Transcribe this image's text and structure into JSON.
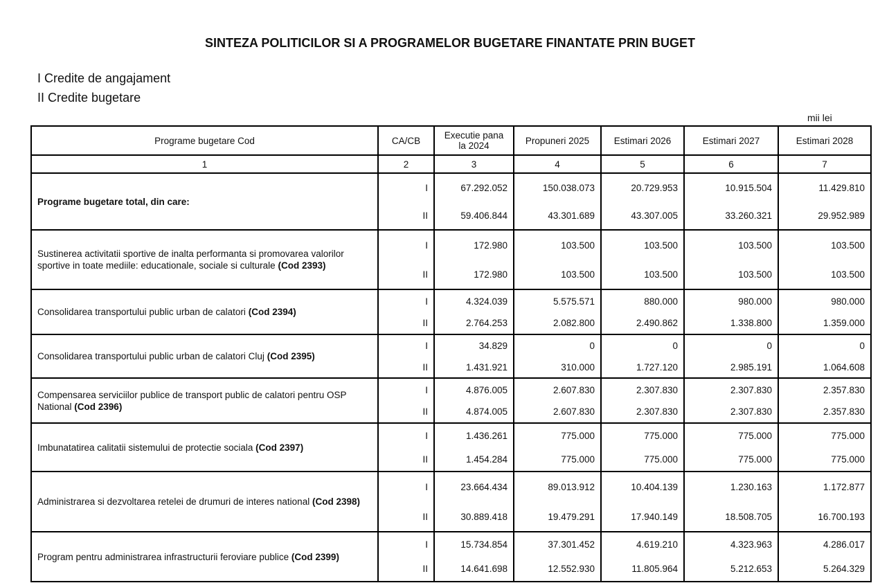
{
  "title": "SINTEZA POLITICILOR SI A PROGRAMELOR BUGETARE FINANTATE PRIN BUGET",
  "legend": [
    "I Credite de angajament",
    "II Credite bugetare"
  ],
  "unit": "mii lei",
  "headers": [
    "Programe bugetare  Cod",
    "CA/CB",
    "Executie pana la  2024",
    "Propuneri 2025",
    "Estimari 2026",
    "Estimari 2027",
    "Estimari 2028"
  ],
  "column_numbers": [
    "1",
    "2",
    "3",
    "4",
    "5",
    "6",
    "7"
  ],
  "rows": [
    {
      "name": "Programe bugetare total, din care:",
      "code": "",
      "bold": true,
      "I": {
        "type": "I",
        "values": [
          "67.292.052",
          "150.038.073",
          "20.729.953",
          "10.915.504",
          "11.429.810"
        ]
      },
      "II": {
        "type": "II",
        "values": [
          "59.406.844",
          "43.301.689",
          "43.307.005",
          "33.260.321",
          "29.952.989"
        ]
      }
    },
    {
      "name": "Sustinerea activitatii sportive de inalta performanta si promovarea valorilor sportive in toate mediile: educationale, sociale si culturale",
      "code": "(Cod 2393)",
      "I": {
        "type": "I",
        "values": [
          "172.980",
          "103.500",
          "103.500",
          "103.500",
          "103.500"
        ]
      },
      "II": {
        "type": "II",
        "values": [
          "172.980",
          "103.500",
          "103.500",
          "103.500",
          "103.500"
        ]
      }
    },
    {
      "name": "Consolidarea transportului public urban de calatori",
      "code": "(Cod 2394)",
      "I": {
        "type": "I",
        "values": [
          "4.324.039",
          "5.575.571",
          "880.000",
          "980.000",
          "980.000"
        ]
      },
      "II": {
        "type": "II",
        "values": [
          "2.764.253",
          "2.082.800",
          "2.490.862",
          "1.338.800",
          "1.359.000"
        ]
      }
    },
    {
      "name": "Consolidarea transportului public urban de calatori Cluj",
      "code": "(Cod 2395)",
      "I": {
        "type": "I",
        "values": [
          "34.829",
          "0",
          "0",
          "0",
          "0"
        ]
      },
      "II": {
        "type": "II",
        "values": [
          "1.431.921",
          "310.000",
          "1.727.120",
          "2.985.191",
          "1.064.608"
        ]
      }
    },
    {
      "name": "Compensarea serviciilor publice de transport public de calatori pentru OSP National",
      "code": "(Cod 2396)",
      "I": {
        "type": "I",
        "values": [
          "4.876.005",
          "2.607.830",
          "2.307.830",
          "2.307.830",
          "2.357.830"
        ]
      },
      "II": {
        "type": "II",
        "values": [
          "4.874.005",
          "2.607.830",
          "2.307.830",
          "2.307.830",
          "2.357.830"
        ]
      }
    },
    {
      "name": "Imbunatatirea calitatii sistemului de protectie sociala",
      "code": "(Cod 2397)",
      "I": {
        "type": "I",
        "values": [
          "1.436.261",
          "775.000",
          "775.000",
          "775.000",
          "775.000"
        ]
      },
      "II": {
        "type": "II",
        "values": [
          "1.454.284",
          "775.000",
          "775.000",
          "775.000",
          "775.000"
        ]
      }
    },
    {
      "name": "Administrarea si dezvoltarea retelei de drumuri de interes national",
      "code": "(Cod 2398)",
      "I": {
        "type": "I",
        "values": [
          "23.664.434",
          "89.013.912",
          "10.404.139",
          "1.230.163",
          "1.172.877"
        ]
      },
      "II": {
        "type": "II",
        "values": [
          "30.889.418",
          "19.479.291",
          "17.940.149",
          "18.508.705",
          "16.700.193"
        ]
      }
    },
    {
      "name": "Program pentru administrarea infrastructurii feroviare publice",
      "code": "(Cod 2399)",
      "I": {
        "type": "I",
        "values": [
          "15.734.854",
          "37.301.452",
          "4.619.210",
          "4.323.963",
          "4.286.017"
        ]
      },
      "II": {
        "type": "II",
        "values": [
          "14.641.698",
          "12.552.930",
          "11.805.964",
          "5.212.653",
          "5.264.329"
        ]
      }
    }
  ]
}
